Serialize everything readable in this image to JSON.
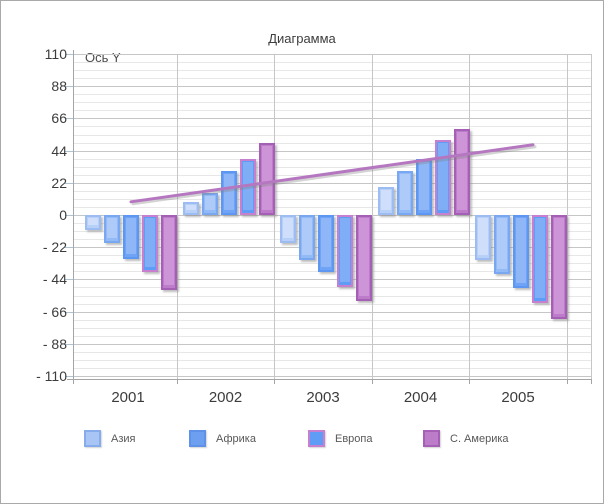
{
  "window": {
    "background": "#FFFFFF",
    "border_color": "#A9A9A9"
  },
  "chart_data": {
    "type": "bar",
    "title": "Диаграмма",
    "categories": [
      "2001",
      "2002",
      "2003",
      "2004",
      "2005"
    ],
    "y_axis": {
      "label": "Ось Y",
      "range": [
        -110,
        110
      ],
      "major_step": 22,
      "minor_step": 5.5,
      "ticks": [
        {
          "v": 110,
          "label": "110"
        },
        {
          "v": 88,
          "label": "88"
        },
        {
          "v": 66,
          "label": "66"
        },
        {
          "v": 44,
          "label": "44"
        },
        {
          "v": 22,
          "label": "22"
        },
        {
          "v": 0,
          "label": "0"
        },
        {
          "v": -22,
          "label": "- 22"
        },
        {
          "v": -44,
          "label": "- 44"
        },
        {
          "v": -66,
          "label": "- 66"
        },
        {
          "v": -88,
          "label": "- 88"
        },
        {
          "v": -110,
          "label": "- 110"
        }
      ]
    },
    "series": [
      {
        "name": "Азия",
        "fill": "#B7D0F8",
        "highlight": "#CFDFFB",
        "border": "#9DBCF2",
        "values": [
          -10,
          9,
          -19,
          19,
          -31
        ]
      },
      {
        "name": "",
        "fill": "#92BAF6",
        "highlight": "#AECAF9",
        "border": "#79A7F0",
        "values": [
          -19,
          15,
          -31,
          30,
          -40
        ]
      },
      {
        "name": "Африка",
        "fill": "#6FA3F5",
        "highlight": "#8FB7F7",
        "border": "#5D97F2",
        "values": [
          -30,
          30,
          -39,
          38,
          -50
        ]
      },
      {
        "name": "Европа",
        "fill": "#5F9CF5",
        "highlight": "#7FAEF7",
        "border": "#C77FD0",
        "values": [
          -39,
          38,
          -49,
          51,
          -60
        ]
      },
      {
        "name": "С. Америка",
        "fill": "#BD7CC9",
        "highlight": "#CD95D7",
        "border": "#A55FB4",
        "values": [
          -51,
          49,
          -59,
          59,
          -71
        ]
      }
    ],
    "trend_line": {
      "color": "#B577C0",
      "values": [
        9,
        18.8,
        28.5,
        38.3,
        48
      ]
    },
    "legend": [
      {
        "label": "Азия",
        "fill": "#A9C5F5",
        "border": "#87ACEC"
      },
      {
        "label": "Африка",
        "fill": "#6D9FF0",
        "border": "#5E92E8"
      },
      {
        "label": "Европа",
        "fill": "#5F9CF5",
        "border": "#C77FD0"
      },
      {
        "label": "С. Америка",
        "fill": "#BD7CC9",
        "border": "#A55FB4"
      }
    ],
    "grid": {
      "major_color": "#C6C6C6",
      "minor_color": "#E7E7E7",
      "axis_color": "#A5A5A5",
      "tick_color": "#AEC2D4"
    },
    "legend_position": "bottom",
    "grid_visible": true
  }
}
